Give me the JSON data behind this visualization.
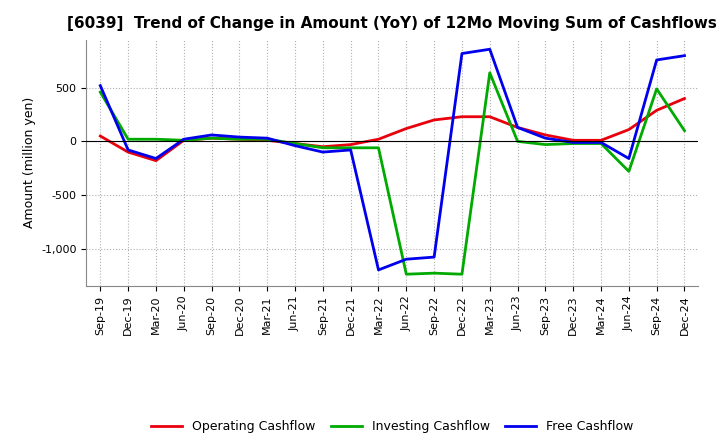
{
  "title": "[6039]  Trend of Change in Amount (YoY) of 12Mo Moving Sum of Cashflows",
  "ylabel": "Amount (million yen)",
  "x_labels": [
    "Sep-19",
    "Dec-19",
    "Mar-20",
    "Jun-20",
    "Sep-20",
    "Dec-20",
    "Mar-21",
    "Jun-21",
    "Sep-21",
    "Dec-21",
    "Mar-22",
    "Jun-22",
    "Sep-22",
    "Dec-22",
    "Mar-23",
    "Jun-23",
    "Sep-23",
    "Dec-23",
    "Mar-24",
    "Jun-24",
    "Sep-24",
    "Dec-24"
  ],
  "operating_cashflow": [
    50,
    -100,
    -180,
    10,
    30,
    20,
    10,
    -20,
    -50,
    -30,
    20,
    120,
    200,
    230,
    230,
    130,
    60,
    10,
    10,
    110,
    290,
    400
  ],
  "investing_cashflow": [
    460,
    20,
    20,
    10,
    30,
    20,
    20,
    -20,
    -60,
    -60,
    -60,
    -1240,
    -1230,
    -1240,
    640,
    0,
    -30,
    -20,
    -20,
    -280,
    490,
    100
  ],
  "free_cashflow": [
    520,
    -80,
    -160,
    20,
    60,
    40,
    30,
    -40,
    -100,
    -80,
    -1200,
    -1100,
    -1080,
    820,
    860,
    130,
    30,
    -10,
    -10,
    -160,
    760,
    800
  ],
  "ylim": [
    -1350,
    950
  ],
  "ytick_positions": [
    -1000,
    -500,
    0,
    500
  ],
  "ytick_labels": [
    "-1,000",
    "-500",
    "0",
    "500"
  ],
  "legend_labels": [
    "Operating Cashflow",
    "Investing Cashflow",
    "Free Cashflow"
  ],
  "line_colors": [
    "#e8000d",
    "#00aa00",
    "#0000ee"
  ],
  "line_width": 2.0,
  "background_color": "#ffffff",
  "grid_color": "#b0b0b0",
  "title_fontsize": 11,
  "ylabel_fontsize": 9,
  "tick_fontsize": 8,
  "legend_fontsize": 9
}
